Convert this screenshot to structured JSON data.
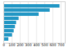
{
  "chart_data": {
    "type": "bar",
    "orientation": "horizontal",
    "categories": [
      null,
      null,
      null,
      null,
      null,
      null,
      null,
      null,
      null
    ],
    "values": [
      685,
      565,
      430,
      185,
      155,
      140,
      125,
      105,
      60
    ],
    "color": "#2196c4",
    "xlim": [
      0,
      750
    ],
    "xticks": [
      0,
      100,
      200,
      300,
      400,
      500,
      600,
      700
    ],
    "grid": true,
    "tick_labels": "x"
  }
}
